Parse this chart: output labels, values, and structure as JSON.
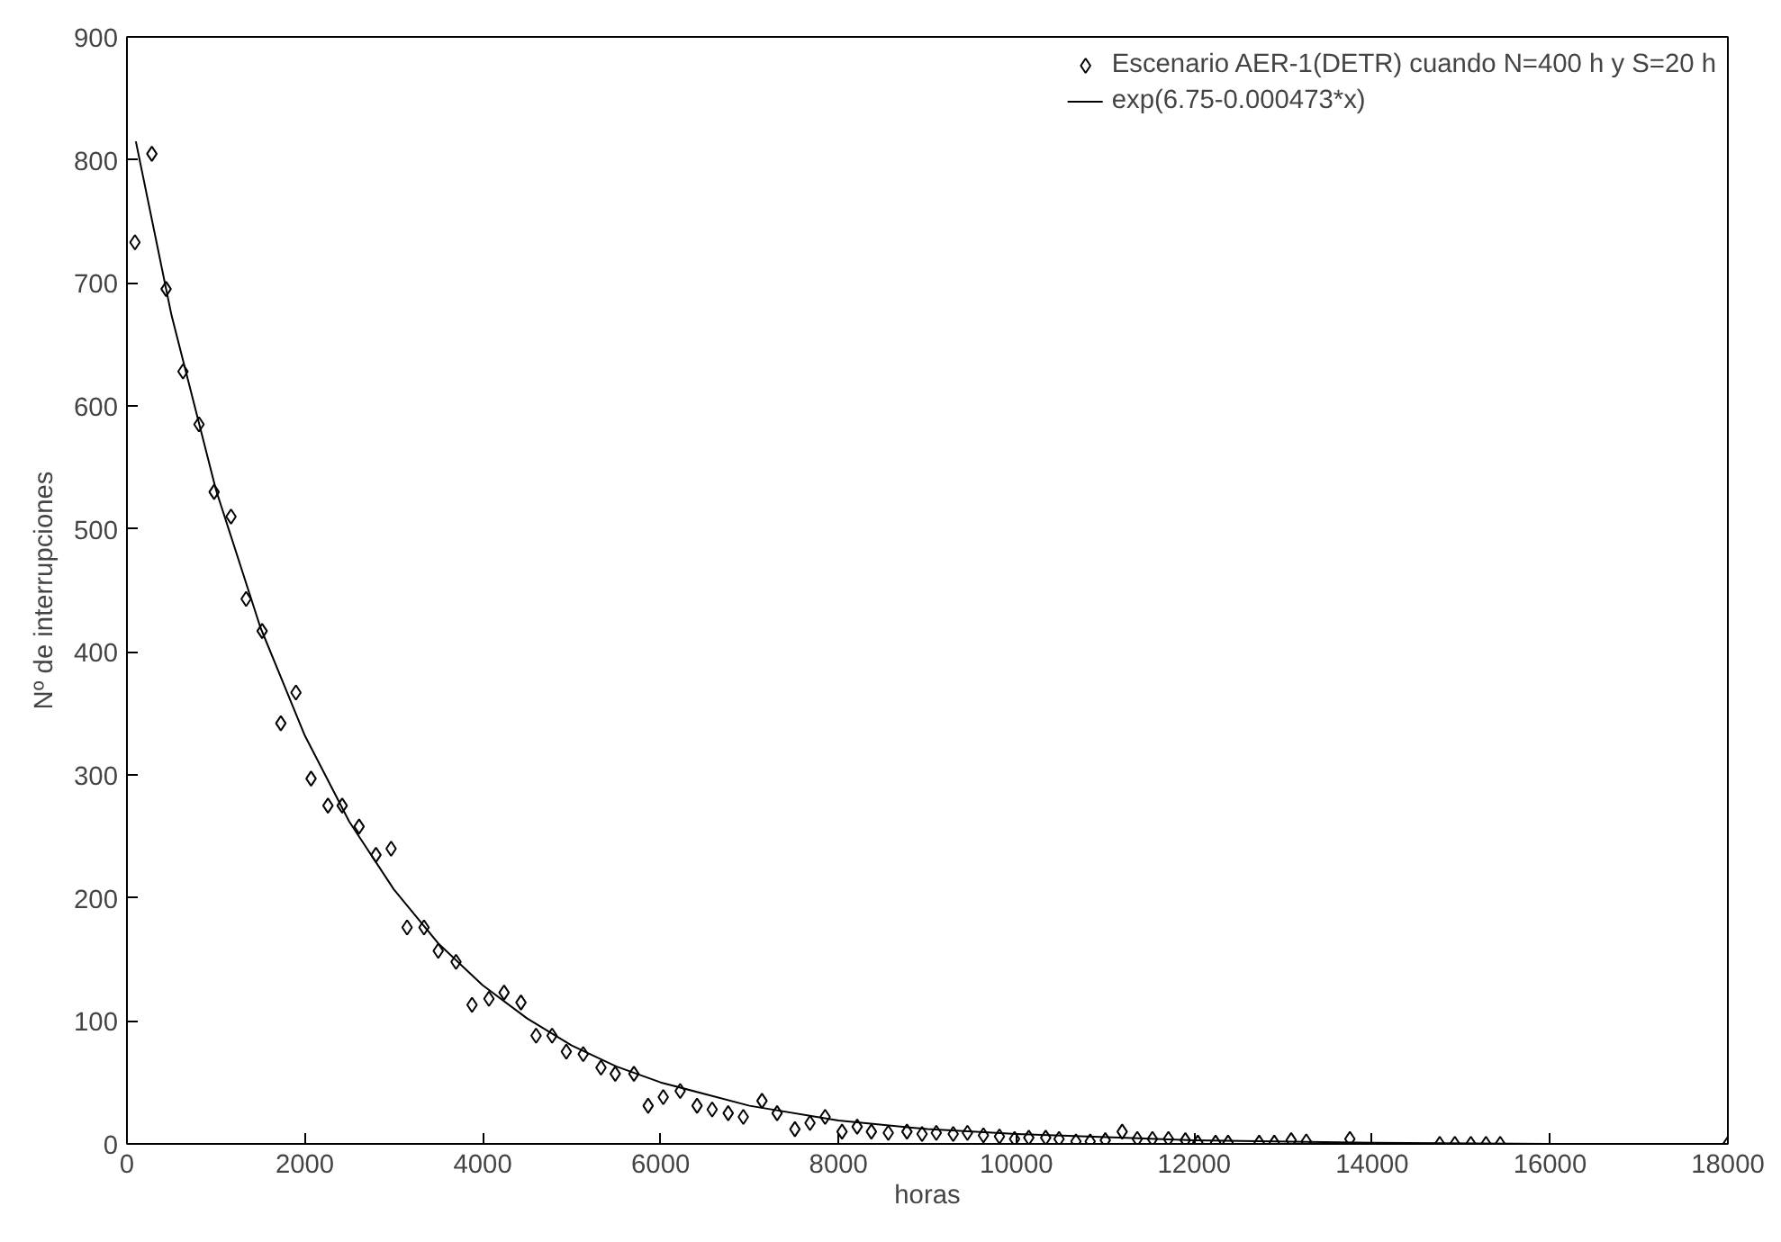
{
  "chart_data": {
    "type": "scatter",
    "xlabel": "horas",
    "ylabel": "Nº de interrupciones",
    "xlim": [
      0,
      18000
    ],
    "ylim": [
      0,
      900
    ],
    "xticks": [
      0,
      2000,
      4000,
      6000,
      8000,
      10000,
      12000,
      14000,
      16000,
      18000
    ],
    "yticks": [
      0,
      100,
      200,
      300,
      400,
      500,
      600,
      700,
      800,
      900
    ],
    "grid": false,
    "legend": "top right",
    "series": [
      {
        "name": "Escenario AER-1(DETR) cuando N=400 h y S=20 h",
        "marker": "diamond",
        "color": "#000000",
        "x": [
          90,
          280,
          440,
          630,
          810,
          980,
          1170,
          1340,
          1520,
          1730,
          1900,
          2070,
          2260,
          2420,
          2610,
          2800,
          2970,
          3150,
          3340,
          3500,
          3700,
          3880,
          4070,
          4240,
          4430,
          4600,
          4780,
          4940,
          5130,
          5330,
          5490,
          5700,
          5860,
          6030,
          6220,
          6410,
          6580,
          6760,
          6930,
          7140,
          7310,
          7510,
          7680,
          7850,
          8040,
          8210,
          8370,
          8560,
          8770,
          8940,
          9100,
          9290,
          9450,
          9630,
          9810,
          9980,
          10140,
          10330,
          10480,
          10670,
          10830,
          11000,
          11190,
          11360,
          11530,
          11710,
          11900,
          12040,
          12240,
          12380,
          12730,
          12900,
          13090,
          13260,
          13750,
          14760,
          14930,
          15110,
          15280,
          15440,
          18000
        ],
        "values": [
          733,
          805,
          695,
          628,
          585,
          530,
          510,
          443,
          417,
          342,
          367,
          297,
          275,
          275,
          258,
          235,
          240,
          176,
          176,
          157,
          148,
          113,
          118,
          123,
          115,
          88,
          88,
          75,
          73,
          62,
          57,
          57,
          31,
          38,
          43,
          31,
          28,
          25,
          22,
          35,
          25,
          12,
          17,
          22,
          10,
          14,
          10,
          9,
          10,
          8,
          9,
          8,
          9,
          7,
          6,
          4,
          5,
          5,
          4,
          2,
          2,
          3,
          10,
          4,
          4,
          4,
          3,
          1,
          1,
          1,
          1,
          1,
          3,
          2,
          4,
          0,
          0,
          0,
          0,
          0,
          0
        ]
      },
      {
        "name": "exp(6.75-0.000473*x)",
        "type": "line",
        "line_style": "solid",
        "color": "#000000",
        "x": [
          100,
          500,
          1000,
          1500,
          2000,
          2500,
          3000,
          3500,
          4000,
          4500,
          5000,
          5500,
          6000,
          7000,
          8000,
          9000,
          10000,
          12000,
          14000,
          16000,
          18000
        ],
        "values": [
          815,
          674,
          532,
          420,
          332,
          262,
          207,
          163,
          129,
          102,
          80,
          63,
          50,
          31,
          19,
          12,
          8,
          3,
          1,
          0,
          0
        ]
      }
    ]
  }
}
